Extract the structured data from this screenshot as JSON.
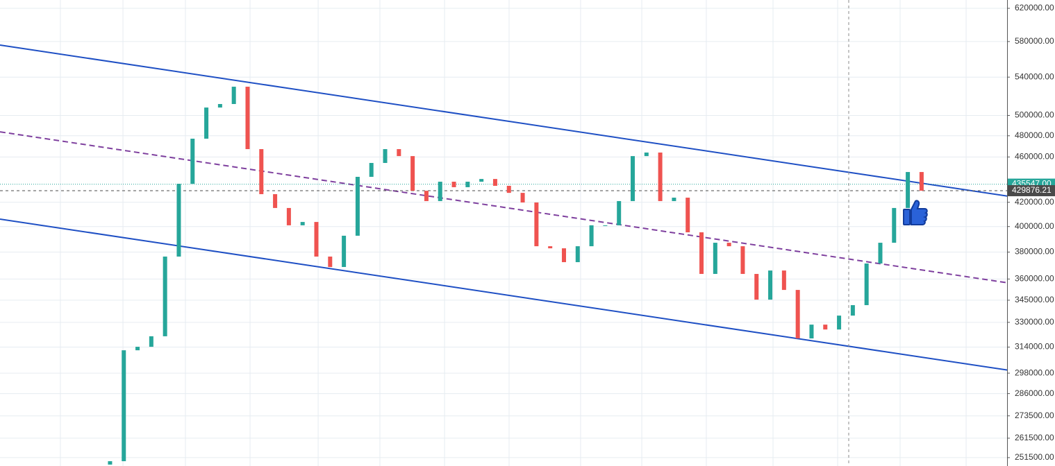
{
  "chart_data": {
    "type": "candlestick",
    "scale": "log",
    "grid": true,
    "up_color": "#26a69a",
    "down_color": "#ef5350",
    "xlim": [
      -8,
      68.7
    ],
    "ylim": [
      247300,
      630450
    ],
    "xticks": [
      -3.61,
      0.94,
      5.48,
      10.18,
      15.13,
      19.62,
      24.32,
      29.01,
      34.21,
      38.66,
      43.35,
      48.2,
      52.9,
      57.44,
      62.24
    ],
    "yticks": [
      {
        "value": 620000,
        "label": "620000.00"
      },
      {
        "value": 580000,
        "label": "580000.00"
      },
      {
        "value": 540000,
        "label": "540000.00"
      },
      {
        "value": 500000,
        "label": "500000.00"
      },
      {
        "value": 480000,
        "label": "480000.00"
      },
      {
        "value": 460000,
        "label": "460000.00"
      },
      {
        "value": 420000,
        "label": "420000.00"
      },
      {
        "value": 400000,
        "label": "400000.00"
      },
      {
        "value": 380000,
        "label": "380000.00"
      },
      {
        "value": 360000,
        "label": "360000.00"
      },
      {
        "value": 345000,
        "label": "345000.00"
      },
      {
        "value": 330000,
        "label": "330000.00"
      },
      {
        "value": 314000,
        "label": "314000.00"
      },
      {
        "value": 298000,
        "label": "298000.00"
      },
      {
        "value": 286000,
        "label": "286000.00"
      },
      {
        "value": 273500,
        "label": "273500.00"
      },
      {
        "value": 261500,
        "label": "261500.00"
      },
      {
        "value": 251500,
        "label": "251500.00"
      }
    ],
    "open": [
      248000,
      249700,
      312000,
      314200,
      320900,
      376600,
      435900,
      477200,
      508000,
      511600,
      529700,
      467300,
      426900,
      415200,
      401000,
      403700,
      376600,
      368800,
      392700,
      442000,
      454500,
      467300,
      460800,
      429800,
      421000,
      437700,
      432900,
      437700,
      440100,
      434100,
      428000,
      419800,
      384500,
      382900,
      372400,
      384500,
      401000,
      401000,
      421000,
      460800,
      464100,
      421000,
      423900,
      395400,
      363700,
      387200,
      384500,
      363700,
      345400,
      366200,
      352200,
      319500,
      328500,
      325300,
      334500,
      341600,
      371400,
      387200,
      415200,
      446300
    ],
    "close": [
      249700,
      312000,
      314200,
      320900,
      376600,
      435900,
      477200,
      508000,
      511600,
      529700,
      467300,
      426900,
      415200,
      401000,
      403700,
      376600,
      368800,
      392700,
      442000,
      454500,
      467300,
      460800,
      429800,
      421000,
      437700,
      432900,
      437700,
      440100,
      434100,
      428000,
      419800,
      384500,
      382900,
      372400,
      384500,
      401000,
      401000,
      421000,
      460800,
      464100,
      421000,
      423900,
      395400,
      363700,
      387200,
      384500,
      363700,
      345400,
      366200,
      352200,
      319500,
      328500,
      325300,
      334500,
      341600,
      371400,
      387200,
      415200,
      446300,
      429876.21
    ],
    "trend_lines": [
      {
        "x": [
          -8,
          68.7
        ],
        "y": [
          575900,
          419200
        ],
        "color": "#1e4fc4",
        "dash": false
      },
      {
        "x": [
          -8,
          68.7
        ],
        "y": [
          483800,
          352200
        ],
        "color": "#7e3f9e",
        "dash": true
      },
      {
        "x": [
          -8,
          68.7
        ],
        "y": [
          406000,
          295600
        ],
        "color": "#1e4fc4",
        "dash": false
      }
    ],
    "price_lines": [
      {
        "value": 435547,
        "label": "435547.00",
        "color": "#26a69a"
      },
      {
        "value": 429876.21,
        "label": "429876.21",
        "color": "#4a4a4a"
      }
    ]
  }
}
